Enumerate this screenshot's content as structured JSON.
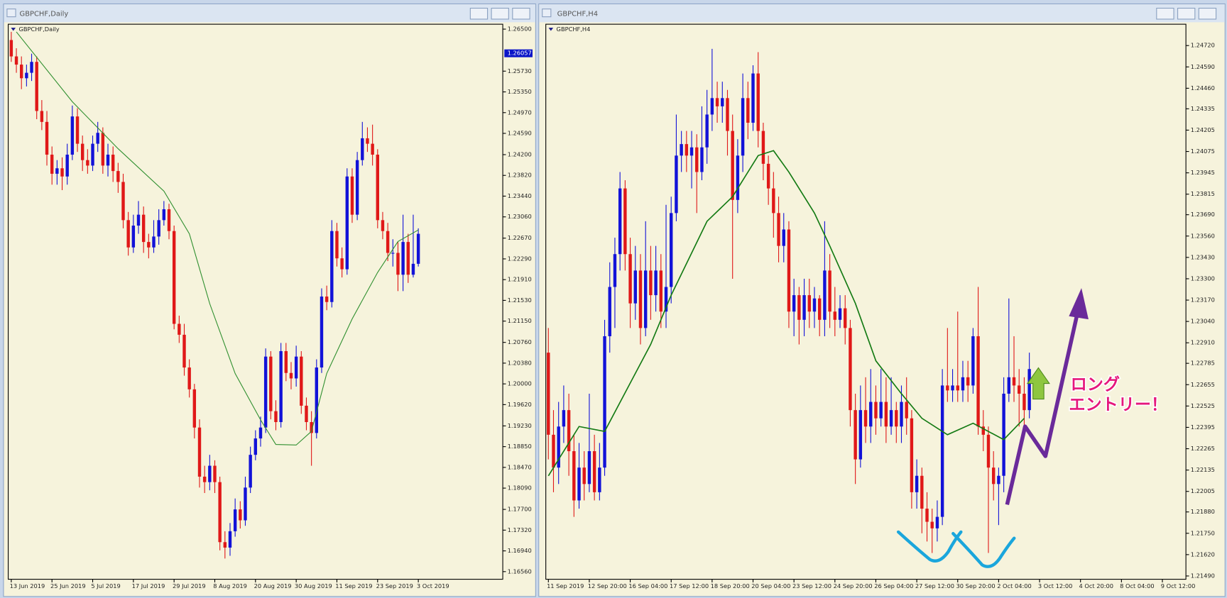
{
  "chart_data": [
    {
      "type": "candlestick",
      "window_title": "GBPCHF,Daily",
      "label": "GBPCHF,Daily",
      "bull_color": "#1212d8",
      "bear_color": "#e01818",
      "open": [
        1.263,
        1.26,
        1.2585,
        1.256,
        1.257,
        1.259,
        1.25,
        1.248,
        1.242,
        1.2385,
        1.2395,
        1.238,
        1.242,
        1.249,
        1.244,
        1.241,
        1.24,
        1.244,
        1.246,
        1.24,
        1.242,
        1.239,
        1.237,
        1.23,
        1.225,
        1.229,
        1.231,
        1.226,
        1.225,
        1.227,
        1.23,
        1.232,
        1.228,
        1.211,
        1.209,
        1.203,
        1.199,
        1.192,
        1.183,
        1.182,
        1.185,
        1.182,
        1.171,
        1.17,
        1.173,
        1.177,
        1.175,
        1.181,
        1.187,
        1.19,
        1.192,
        1.205,
        1.195,
        1.193,
        1.206,
        1.202,
        1.201,
        1.205,
        1.196,
        1.193,
        1.191,
        1.203,
        1.216,
        1.215,
        1.228,
        1.223,
        1.221,
        1.238,
        1.231,
        1.241,
        1.245,
        1.244,
        1.242,
        1.23,
        1.228,
        1.224,
        1.224,
        1.22,
        1.226,
        1.22,
        1.222
      ],
      "high": [
        1.2645,
        1.2615,
        1.26,
        1.2585,
        1.2605,
        1.26,
        1.252,
        1.25,
        1.2435,
        1.241,
        1.2415,
        1.244,
        1.251,
        1.2505,
        1.2455,
        1.243,
        1.2455,
        1.248,
        1.247,
        1.244,
        1.2435,
        1.2405,
        1.2385,
        1.2315,
        1.231,
        1.2335,
        1.2325,
        1.2275,
        1.23,
        1.232,
        1.2335,
        1.233,
        1.229,
        1.2125,
        1.211,
        1.2045,
        1.2,
        1.1935,
        1.185,
        1.187,
        1.186,
        1.183,
        1.173,
        1.1745,
        1.179,
        1.1785,
        1.183,
        1.1885,
        1.1915,
        1.194,
        1.2065,
        1.206,
        1.197,
        1.2075,
        1.2075,
        1.204,
        1.207,
        1.206,
        1.1975,
        1.195,
        1.2045,
        1.2175,
        1.218,
        1.23,
        1.2295,
        1.225,
        1.2395,
        1.2395,
        1.2425,
        1.248,
        1.247,
        1.2475,
        1.243,
        1.2315,
        1.2295,
        1.2265,
        1.226,
        1.231,
        1.2275,
        1.231,
        1.2285
      ],
      "low": [
        1.259,
        1.257,
        1.254,
        1.2545,
        1.2555,
        1.2485,
        1.2465,
        1.24,
        1.2365,
        1.2365,
        1.2355,
        1.2365,
        1.241,
        1.2425,
        1.239,
        1.2385,
        1.239,
        1.2425,
        1.2385,
        1.238,
        1.237,
        1.235,
        1.2285,
        1.2235,
        1.224,
        1.2275,
        1.224,
        1.223,
        1.224,
        1.2255,
        1.229,
        1.2265,
        1.21,
        1.2075,
        1.2015,
        1.1975,
        1.19,
        1.181,
        1.18,
        1.1805,
        1.18,
        1.1695,
        1.168,
        1.1685,
        1.172,
        1.1735,
        1.174,
        1.18,
        1.186,
        1.1885,
        1.191,
        1.1935,
        1.1915,
        1.192,
        1.2005,
        1.199,
        1.1995,
        1.1945,
        1.1915,
        1.185,
        1.19,
        1.202,
        1.2135,
        1.214,
        1.2215,
        1.2195,
        1.22,
        1.2295,
        1.23,
        1.24,
        1.2425,
        1.24,
        1.2285,
        1.2265,
        1.2225,
        1.2215,
        1.217,
        1.217,
        1.2185,
        1.2195,
        1.2215
      ],
      "close": [
        1.26,
        1.2585,
        1.256,
        1.257,
        1.259,
        1.25,
        1.248,
        1.242,
        1.2385,
        1.2395,
        1.238,
        1.242,
        1.249,
        1.244,
        1.241,
        1.24,
        1.244,
        1.246,
        1.24,
        1.242,
        1.239,
        1.237,
        1.23,
        1.225,
        1.229,
        1.231,
        1.226,
        1.225,
        1.227,
        1.23,
        1.232,
        1.228,
        1.211,
        1.209,
        1.203,
        1.199,
        1.192,
        1.183,
        1.182,
        1.185,
        1.182,
        1.171,
        1.17,
        1.173,
        1.177,
        1.175,
        1.181,
        1.187,
        1.19,
        1.192,
        1.205,
        1.195,
        1.193,
        1.206,
        1.202,
        1.201,
        1.205,
        1.196,
        1.193,
        1.191,
        1.203,
        1.216,
        1.215,
        1.228,
        1.223,
        1.221,
        1.238,
        1.231,
        1.241,
        1.245,
        1.244,
        1.242,
        1.23,
        1.228,
        1.224,
        1.224,
        1.22,
        1.226,
        1.22,
        1.222,
        1.2275
      ],
      "ma": {
        "color": "#2f8f2f",
        "x": [
          1,
          12,
          21,
          30,
          35,
          39,
          44,
          49,
          52,
          56,
          59,
          62,
          67,
          72,
          76,
          80
        ],
        "values": [
          1.2645,
          1.2517,
          1.2431,
          1.2353,
          1.2275,
          1.2147,
          1.2019,
          1.1934,
          1.1889,
          1.1888,
          1.1913,
          1.2019,
          1.2119,
          1.2204,
          1.2261,
          1.2282
        ]
      },
      "current_price": {
        "value": 1.26057,
        "label": "1.26057"
      },
      "xlim": [
        -0.6,
        96.6
      ],
      "ylim": [
        1.1642,
        1.2659
      ],
      "xticks": [
        {
          "value": 0,
          "label": "13 Jun 2019"
        },
        {
          "value": 8,
          "label": "25 Jun 2019"
        },
        {
          "value": 16,
          "label": "5 Jul 2019"
        },
        {
          "value": 24,
          "label": "17 Jul 2019"
        },
        {
          "value": 32,
          "label": "29 Jul 2019"
        },
        {
          "value": 40,
          "label": "8 Aug 2019"
        },
        {
          "value": 48,
          "label": "20 Aug 2019"
        },
        {
          "value": 56,
          "label": "30 Aug 2019"
        },
        {
          "value": 64,
          "label": "11 Sep 2019"
        },
        {
          "value": 72,
          "label": "23 Sep 2019"
        },
        {
          "value": 80,
          "label": "3 Oct 2019"
        }
      ],
      "yticks": [
        {
          "value": 1.265,
          "label": "1.26500"
        },
        {
          "value": 1.2573,
          "label": "1.25730"
        },
        {
          "value": 1.2535,
          "label": "1.25350"
        },
        {
          "value": 1.2497,
          "label": "1.24970"
        },
        {
          "value": 1.2459,
          "label": "1.24590"
        },
        {
          "value": 1.242,
          "label": "1.24200"
        },
        {
          "value": 1.2382,
          "label": "1.23820"
        },
        {
          "value": 1.2344,
          "label": "1.23440"
        },
        {
          "value": 1.2306,
          "label": "1.23060"
        },
        {
          "value": 1.2267,
          "label": "1.22670"
        },
        {
          "value": 1.2229,
          "label": "1.22290"
        },
        {
          "value": 1.2191,
          "label": "1.21910"
        },
        {
          "value": 1.2153,
          "label": "1.21530"
        },
        {
          "value": 1.2115,
          "label": "1.21150"
        },
        {
          "value": 1.2076,
          "label": "1.20760"
        },
        {
          "value": 1.2038,
          "label": "1.20380"
        },
        {
          "value": 1.2,
          "label": "1.20000"
        },
        {
          "value": 1.1962,
          "label": "1.19620"
        },
        {
          "value": 1.1923,
          "label": "1.19230"
        },
        {
          "value": 1.1885,
          "label": "1.18850"
        },
        {
          "value": 1.1847,
          "label": "1.18470"
        },
        {
          "value": 1.1809,
          "label": "1.18090"
        },
        {
          "value": 1.177,
          "label": "1.17700"
        },
        {
          "value": 1.1732,
          "label": "1.17320"
        },
        {
          "value": 1.1694,
          "label": "1.16940"
        },
        {
          "value": 1.1656,
          "label": "1.16560"
        }
      ]
    },
    {
      "type": "candlestick",
      "window_title": "GBPCHF,H4",
      "label": "GBPCHF,H4",
      "bull_color": "#1212d8",
      "bear_color": "#e01818",
      "open": [
        1.2285,
        1.2235,
        1.2215,
        1.224,
        1.225,
        1.2225,
        1.2195,
        1.2215,
        1.2205,
        1.2225,
        1.22,
        1.2215,
        1.2295,
        1.2325,
        1.2345,
        1.2385,
        1.2345,
        1.2315,
        1.2335,
        1.23,
        1.2335,
        1.232,
        1.2335,
        1.231,
        1.2325,
        1.237,
        1.2405,
        1.2412,
        1.2405,
        1.241,
        1.2395,
        1.241,
        1.243,
        1.244,
        1.2435,
        1.244,
        1.242,
        1.2378,
        1.2405,
        1.244,
        1.2425,
        1.2455,
        1.242,
        1.24,
        1.2385,
        1.237,
        1.235,
        1.236,
        1.231,
        1.232,
        1.2305,
        1.232,
        1.231,
        1.2318,
        1.2305,
        1.2335,
        1.231,
        1.2305,
        1.2312,
        1.23,
        1.225,
        1.222,
        1.225,
        1.224,
        1.2255,
        1.2245,
        1.2255,
        1.224,
        1.225,
        1.224,
        1.2255,
        1.2245,
        1.22,
        1.221,
        1.219,
        1.2182,
        1.2178,
        1.2185,
        1.2265,
        1.2262,
        1.2265,
        1.2262,
        1.227,
        1.2265,
        1.2295,
        1.224,
        1.2235,
        1.2215,
        1.2205,
        1.221,
        1.226,
        1.227,
        1.2265,
        1.226,
        1.225
      ],
      "high": [
        1.23,
        1.225,
        1.2255,
        1.2265,
        1.226,
        1.2235,
        1.223,
        1.2225,
        1.226,
        1.2235,
        1.223,
        1.2305,
        1.234,
        1.2355,
        1.2395,
        1.239,
        1.2355,
        1.235,
        1.2345,
        1.2365,
        1.235,
        1.235,
        1.2345,
        1.2375,
        1.238,
        1.243,
        1.242,
        1.242,
        1.242,
        1.2418,
        1.2435,
        1.2445,
        1.247,
        1.245,
        1.245,
        1.2445,
        1.243,
        1.2415,
        1.2455,
        1.245,
        1.246,
        1.2468,
        1.2425,
        1.2405,
        1.2395,
        1.238,
        1.237,
        1.2365,
        1.233,
        1.2325,
        1.233,
        1.233,
        1.2325,
        1.232,
        1.2365,
        1.2345,
        1.2325,
        1.232,
        1.232,
        1.2305,
        1.226,
        1.2265,
        1.227,
        1.2275,
        1.2265,
        1.2275,
        1.227,
        1.227,
        1.2255,
        1.2265,
        1.227,
        1.225,
        1.222,
        1.2215,
        1.22,
        1.219,
        1.2195,
        1.2275,
        1.23,
        1.2275,
        1.231,
        1.228,
        1.228,
        1.23,
        1.2325,
        1.225,
        1.224,
        1.2225,
        1.2215,
        1.227,
        1.2318,
        1.2295,
        1.2275,
        1.227,
        1.2285
      ],
      "low": [
        1.222,
        1.22,
        1.2205,
        1.223,
        1.221,
        1.2185,
        1.219,
        1.2195,
        1.22,
        1.2195,
        1.2195,
        1.221,
        1.2285,
        1.23,
        1.2335,
        1.2335,
        1.23,
        1.2305,
        1.229,
        1.2295,
        1.2305,
        1.231,
        1.23,
        1.23,
        1.2315,
        1.2365,
        1.2395,
        1.2395,
        1.2385,
        1.237,
        1.239,
        1.24,
        1.242,
        1.2425,
        1.2425,
        1.2405,
        1.233,
        1.237,
        1.2395,
        1.2415,
        1.242,
        1.241,
        1.239,
        1.2375,
        1.2355,
        1.234,
        1.234,
        1.23,
        1.2295,
        1.229,
        1.2295,
        1.23,
        1.23,
        1.2295,
        1.2295,
        1.23,
        1.2295,
        1.23,
        1.229,
        1.224,
        1.2205,
        1.2215,
        1.223,
        1.223,
        1.2235,
        1.224,
        1.223,
        1.2235,
        1.223,
        1.223,
        1.2235,
        1.219,
        1.219,
        1.2175,
        1.217,
        1.2163,
        1.217,
        1.218,
        1.2255,
        1.2255,
        1.2255,
        1.2255,
        1.2255,
        1.226,
        1.2235,
        1.2225,
        1.2163,
        1.2195,
        1.218,
        1.22,
        1.2255,
        1.2255,
        1.224,
        1.224,
        1.2245
      ],
      "close": [
        1.2235,
        1.2215,
        1.224,
        1.225,
        1.2225,
        1.2195,
        1.2215,
        1.2205,
        1.2225,
        1.22,
        1.2215,
        1.2295,
        1.2325,
        1.2345,
        1.2385,
        1.2345,
        1.2315,
        1.2335,
        1.23,
        1.2335,
        1.232,
        1.2335,
        1.231,
        1.2325,
        1.237,
        1.2405,
        1.2412,
        1.2405,
        1.241,
        1.2395,
        1.241,
        1.243,
        1.244,
        1.2435,
        1.244,
        1.242,
        1.2378,
        1.2405,
        1.244,
        1.2425,
        1.2455,
        1.242,
        1.24,
        1.2385,
        1.237,
        1.235,
        1.236,
        1.231,
        1.232,
        1.2305,
        1.232,
        1.231,
        1.2318,
        1.2305,
        1.2335,
        1.231,
        1.2305,
        1.2312,
        1.23,
        1.225,
        1.222,
        1.225,
        1.224,
        1.2255,
        1.2245,
        1.2255,
        1.224,
        1.225,
        1.224,
        1.2255,
        1.2245,
        1.22,
        1.221,
        1.219,
        1.2182,
        1.2178,
        1.2185,
        1.2265,
        1.2262,
        1.2265,
        1.2262,
        1.227,
        1.2265,
        1.2295,
        1.224,
        1.2235,
        1.2215,
        1.2205,
        1.221,
        1.226,
        1.227,
        1.2265,
        1.226,
        1.225,
        1.2275
      ],
      "ma": {
        "color": "#137a13",
        "x": [
          0,
          6,
          11,
          20,
          24,
          31,
          36,
          41,
          44,
          47,
          52,
          55,
          60,
          64,
          69,
          73,
          78,
          83,
          89,
          93
        ],
        "values": [
          1.221,
          1.224,
          1.2237,
          1.229,
          1.232,
          1.2365,
          1.238,
          1.2405,
          1.2408,
          1.2395,
          1.237,
          1.235,
          1.2315,
          1.228,
          1.226,
          1.2245,
          1.2235,
          1.2242,
          1.2232,
          1.2245
        ]
      },
      "annotations": [
        "ロング",
        "エントリー！"
      ],
      "xlim": [
        -0.5,
        124.6
      ],
      "ylim": [
        1.2147,
        1.2485
      ],
      "xticks": [
        {
          "value": 0,
          "label": "11 Sep 2019"
        },
        {
          "value": 8,
          "label": "12 Sep 20:00"
        },
        {
          "value": 16,
          "label": "16 Sep 04:00"
        },
        {
          "value": 24,
          "label": "17 Sep 12:00"
        },
        {
          "value": 32,
          "label": "18 Sep 20:00"
        },
        {
          "value": 40,
          "label": "20 Sep 04:00"
        },
        {
          "value": 48,
          "label": "23 Sep 12:00"
        },
        {
          "value": 56,
          "label": "24 Sep 20:00"
        },
        {
          "value": 64,
          "label": "26 Sep 04:00"
        },
        {
          "value": 72,
          "label": "27 Sep 12:00"
        },
        {
          "value": 80,
          "label": "30 Sep 20:00"
        },
        {
          "value": 88,
          "label": "2 Oct 04:00"
        },
        {
          "value": 96,
          "label": "3 Oct 12:00"
        },
        {
          "value": 104,
          "label": "4 Oct 20:00"
        },
        {
          "value": 112,
          "label": "8 Oct 04:00"
        },
        {
          "value": 120,
          "label": "9 Oct 12:00"
        }
      ],
      "yticks": [
        {
          "value": 1.2472,
          "label": "1.24720"
        },
        {
          "value": 1.2459,
          "label": "1.24590"
        },
        {
          "value": 1.2446,
          "label": "1.24460"
        },
        {
          "value": 1.24335,
          "label": "1.24335"
        },
        {
          "value": 1.24205,
          "label": "1.24205"
        },
        {
          "value": 1.24075,
          "label": "1.24075"
        },
        {
          "value": 1.23945,
          "label": "1.23945"
        },
        {
          "value": 1.23815,
          "label": "1.23815"
        },
        {
          "value": 1.2369,
          "label": "1.23690"
        },
        {
          "value": 1.2356,
          "label": "1.23560"
        },
        {
          "value": 1.2343,
          "label": "1.23430"
        },
        {
          "value": 1.233,
          "label": "1.23300"
        },
        {
          "value": 1.2317,
          "label": "1.23170"
        },
        {
          "value": 1.2304,
          "label": "1.23040"
        },
        {
          "value": 1.2291,
          "label": "1.22910"
        },
        {
          "value": 1.22785,
          "label": "1.22785"
        },
        {
          "value": 1.22655,
          "label": "1.22655"
        },
        {
          "value": 1.22525,
          "label": "1.22525"
        },
        {
          "value": 1.22395,
          "label": "1.22395"
        },
        {
          "value": 1.22265,
          "label": "1.22265"
        },
        {
          "value": 1.22135,
          "label": "1.22135"
        },
        {
          "value": 1.22005,
          "label": "1.22005"
        },
        {
          "value": 1.2188,
          "label": "1.21880"
        },
        {
          "value": 1.2175,
          "label": "1.21750"
        },
        {
          "value": 1.2162,
          "label": "1.21620"
        },
        {
          "value": 1.2149,
          "label": "1.21490"
        }
      ]
    }
  ]
}
